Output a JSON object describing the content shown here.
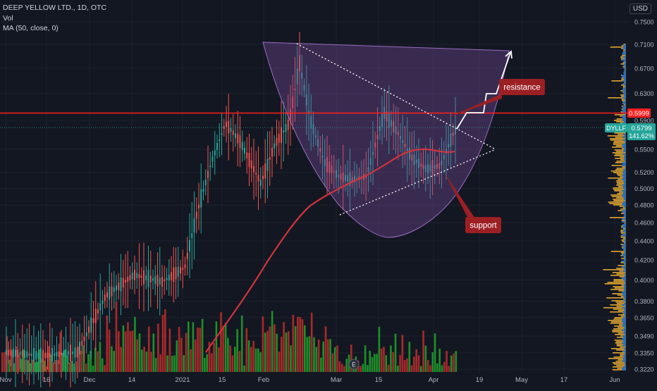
{
  "header": {
    "title": "DEEP YELLOW LTD., 1D, OTC",
    "volume_label": "Vol",
    "ma_label": "MA (50, close, 0)",
    "currency": "USD"
  },
  "annotations": {
    "resistance": "resistance",
    "support": "support",
    "earnings_marker": "E"
  },
  "price_tags": {
    "red_line": "0.5999",
    "ticker": "DYLLF",
    "last": "0.5799",
    "change": "141.62%"
  },
  "colors": {
    "background": "#131722",
    "up": "#26a69a",
    "down": "#ef5350",
    "volume_up": "#1f8f2a",
    "volume_down": "#a82a2a",
    "ma": "#d0353b",
    "resistance_line": "#ff1f1f",
    "cup_fill": "#7a4b9a",
    "volume_profile_up": "#e0a530",
    "volume_profile_down": "#2e7fd6",
    "label_bg": "#9c1f24",
    "ticker_bg": "#26a69a"
  },
  "chart_data": {
    "type": "candlestick",
    "y_scale": "log",
    "y_axis_ticks": [
      "0.7500",
      "0.7100",
      "0.6700",
      "0.6300",
      "0.5900",
      "0.5500",
      "0.5200",
      "0.5000",
      "0.4800",
      "0.4600",
      "0.4400",
      "0.4200",
      "0.4000",
      "0.3800",
      "0.3650",
      "0.3490",
      "0.3350",
      "0.3220"
    ],
    "x_axis_ticks": [
      "Nov",
      "16",
      "Dec",
      "14",
      "2021",
      "15",
      "Feb",
      "Mar",
      "15",
      "Apr",
      "19",
      "May",
      "17",
      "Jun"
    ],
    "horizontal_line": 0.5999,
    "last_price": 0.5799,
    "overlays": [
      "MA (50, close, 0)",
      "cup pattern",
      "symmetrical triangle",
      "resistance",
      "support"
    ]
  }
}
